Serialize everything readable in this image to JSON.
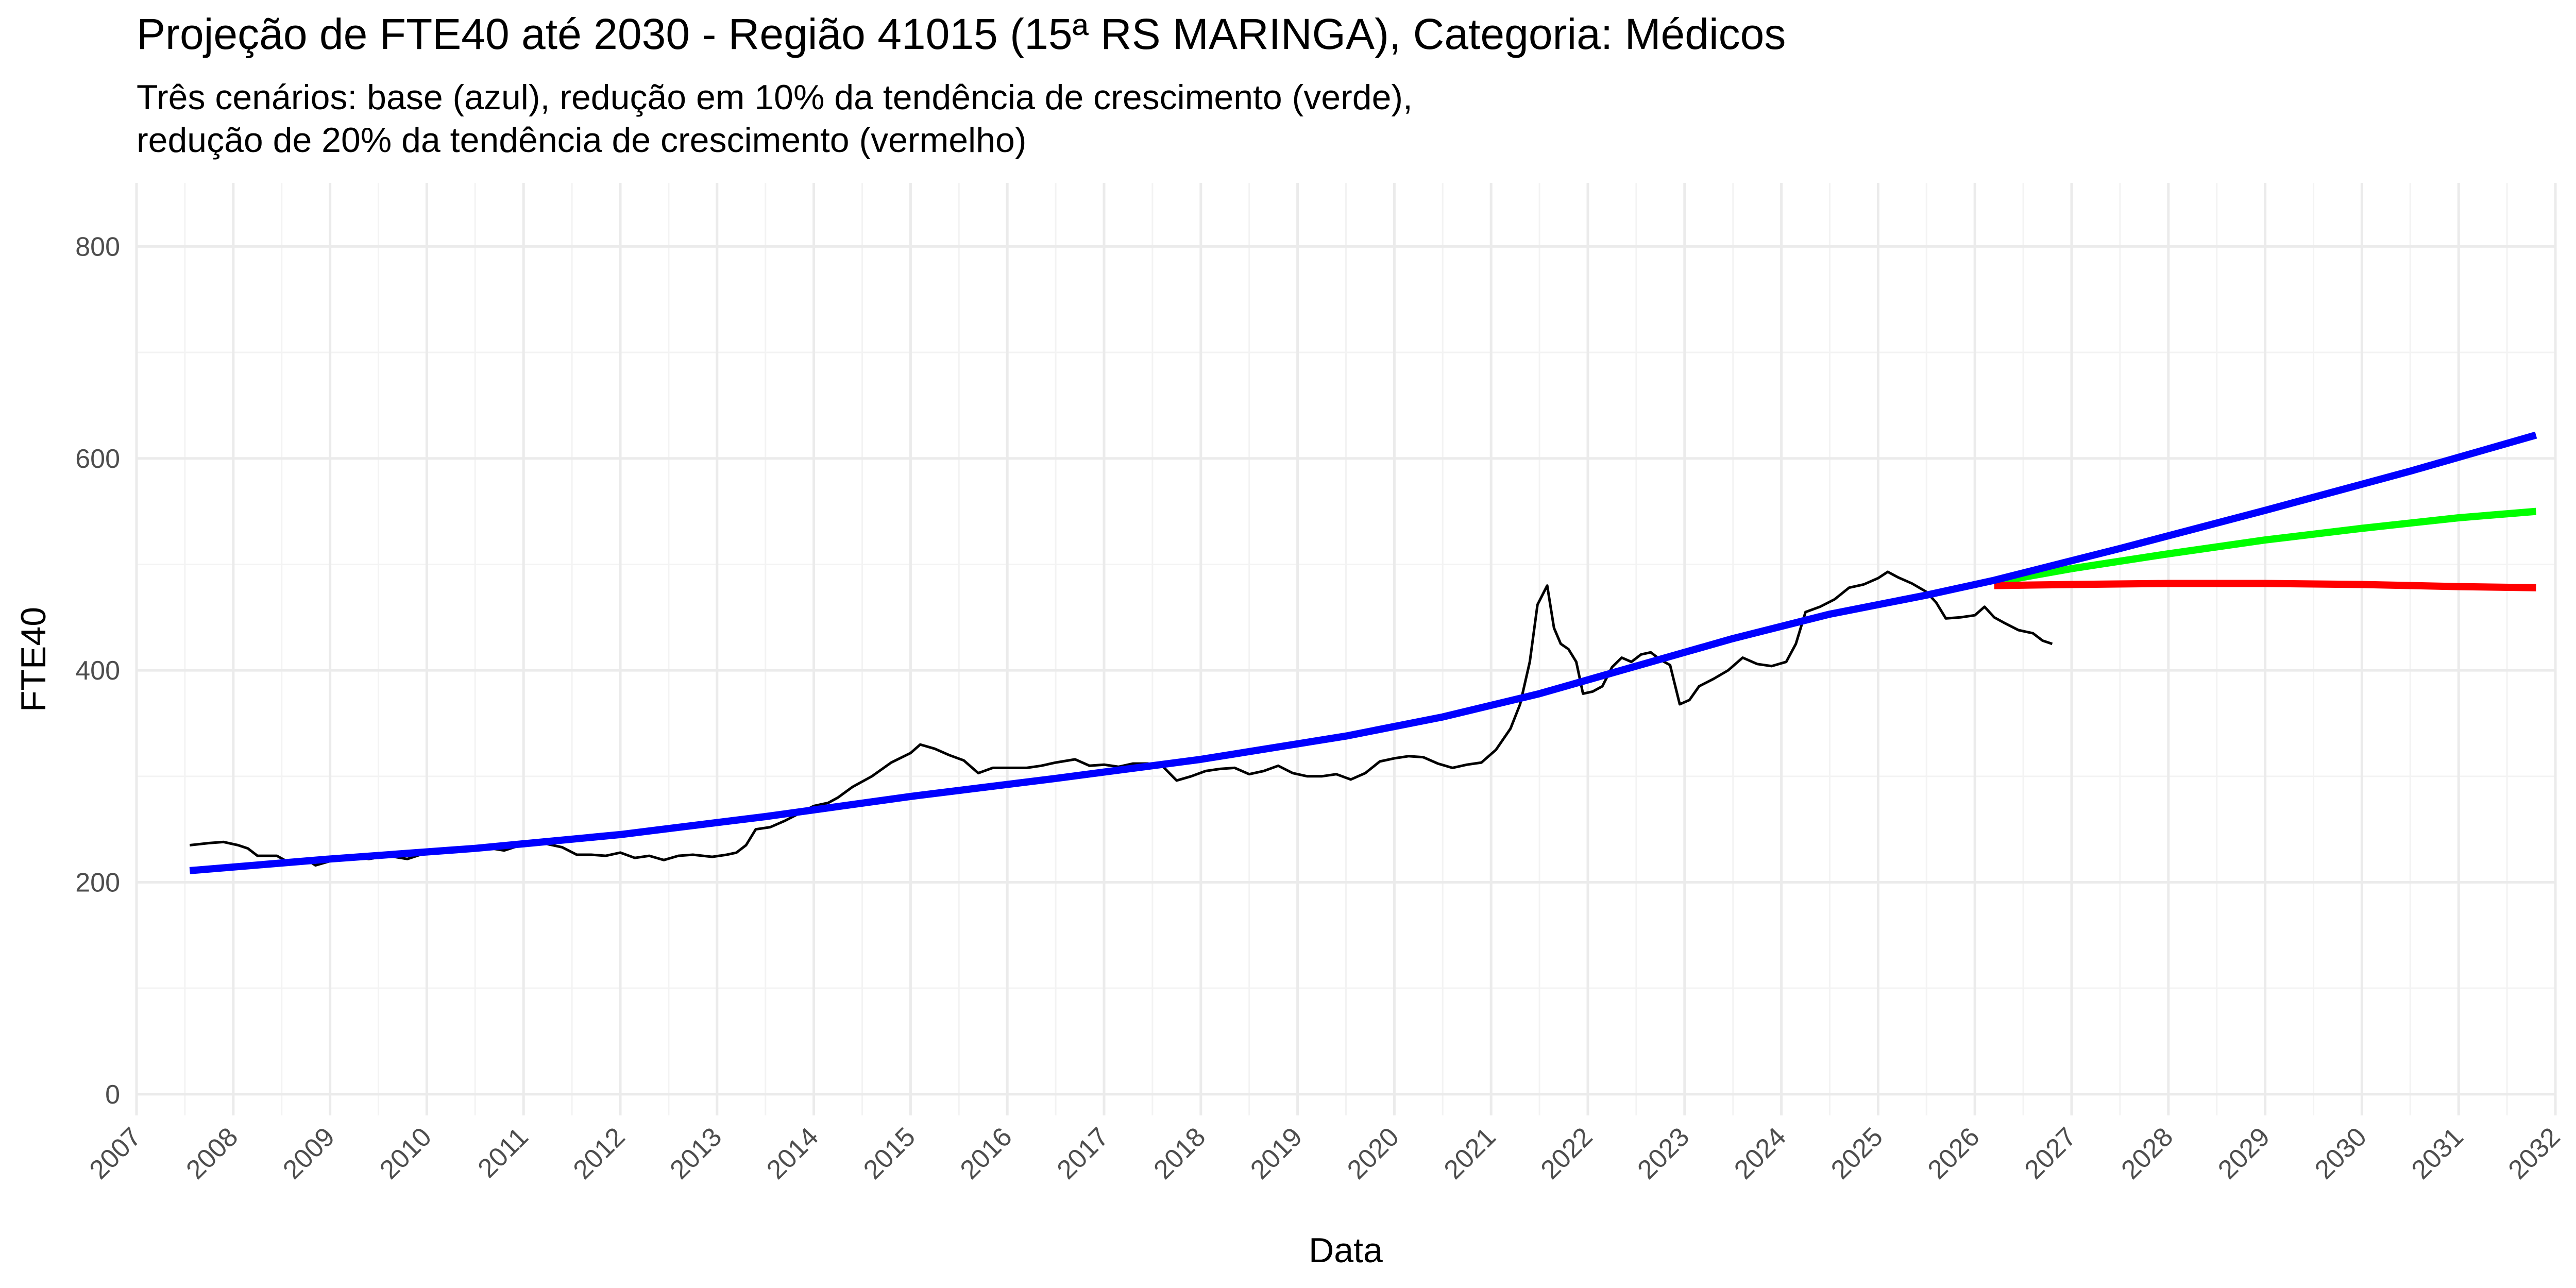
{
  "chart_data": {
    "type": "line",
    "title": "Projeção de FTE40 até 2030 - Região 41015 (15ª RS MARINGA), Categoria: Médicos",
    "subtitle_lines": [
      "Três cenários: base (azul), redução em 10% da tendência de crescimento (verde),",
      " redução de 20% da tendência de crescimento (vermelho)"
    ],
    "xlabel": "Data",
    "ylabel": "FTE40",
    "xlim": [
      2007,
      2032
    ],
    "ylim": [
      -20,
      860
    ],
    "x_ticks": [
      "2007",
      "2008",
      "2009",
      "2010",
      "2011",
      "2012",
      "2013",
      "2014",
      "2015",
      "2016",
      "2017",
      "2018",
      "2019",
      "2020",
      "2021",
      "2022",
      "2023",
      "2024",
      "2025",
      "2026",
      "2027",
      "2028",
      "2029",
      "2030",
      "2031",
      "2032"
    ],
    "y_ticks": [
      0,
      200,
      400,
      600,
      800
    ],
    "grid": true,
    "legend": "none",
    "colors": {
      "observed": "#000000",
      "base": "#0000ff",
      "green": "#00ff00",
      "red": "#ff0000"
    },
    "series": [
      {
        "key": "observed",
        "points": [
          [
            2007.55,
            235
          ],
          [
            2007.75,
            237
          ],
          [
            2007.9,
            238
          ],
          [
            2008.05,
            235
          ],
          [
            2008.15,
            232
          ],
          [
            2008.25,
            225
          ],
          [
            2008.45,
            225
          ],
          [
            2008.55,
            220
          ],
          [
            2008.75,
            222
          ],
          [
            2008.85,
            216
          ],
          [
            2009.0,
            220
          ],
          [
            2009.2,
            225
          ],
          [
            2009.4,
            222
          ],
          [
            2009.6,
            225
          ],
          [
            2009.8,
            222
          ],
          [
            2010.0,
            228
          ],
          [
            2010.2,
            230
          ],
          [
            2010.4,
            232
          ],
          [
            2010.6,
            233
          ],
          [
            2010.8,
            230
          ],
          [
            2011.0,
            236
          ],
          [
            2011.2,
            237
          ],
          [
            2011.4,
            233
          ],
          [
            2011.55,
            226
          ],
          [
            2011.7,
            226
          ],
          [
            2011.85,
            225
          ],
          [
            2012.0,
            228
          ],
          [
            2012.15,
            223
          ],
          [
            2012.3,
            225
          ],
          [
            2012.45,
            221
          ],
          [
            2012.6,
            225
          ],
          [
            2012.75,
            226
          ],
          [
            2012.95,
            224
          ],
          [
            2013.1,
            226
          ],
          [
            2013.2,
            228
          ],
          [
            2013.3,
            235
          ],
          [
            2013.4,
            250
          ],
          [
            2013.55,
            252
          ],
          [
            2013.7,
            258
          ],
          [
            2013.85,
            265
          ],
          [
            2014.0,
            272
          ],
          [
            2014.15,
            275
          ],
          [
            2014.25,
            280
          ],
          [
            2014.4,
            290
          ],
          [
            2014.6,
            300
          ],
          [
            2014.8,
            313
          ],
          [
            2015.0,
            322
          ],
          [
            2015.1,
            330
          ],
          [
            2015.25,
            326
          ],
          [
            2015.4,
            320
          ],
          [
            2015.55,
            315
          ],
          [
            2015.7,
            303
          ],
          [
            2015.85,
            308
          ],
          [
            2016.0,
            308
          ],
          [
            2016.2,
            308
          ],
          [
            2016.35,
            310
          ],
          [
            2016.5,
            313
          ],
          [
            2016.7,
            316
          ],
          [
            2016.85,
            310
          ],
          [
            2017.0,
            311
          ],
          [
            2017.15,
            309
          ],
          [
            2017.3,
            312
          ],
          [
            2017.45,
            312
          ],
          [
            2017.6,
            310
          ],
          [
            2017.75,
            296
          ],
          [
            2017.9,
            300
          ],
          [
            2018.05,
            305
          ],
          [
            2018.2,
            307
          ],
          [
            2018.35,
            308
          ],
          [
            2018.5,
            302
          ],
          [
            2018.65,
            305
          ],
          [
            2018.8,
            310
          ],
          [
            2018.95,
            303
          ],
          [
            2019.1,
            300
          ],
          [
            2019.25,
            300
          ],
          [
            2019.4,
            302
          ],
          [
            2019.55,
            297
          ],
          [
            2019.7,
            303
          ],
          [
            2019.85,
            314
          ],
          [
            2020.0,
            317
          ],
          [
            2020.15,
            319
          ],
          [
            2020.3,
            318
          ],
          [
            2020.45,
            312
          ],
          [
            2020.6,
            308
          ],
          [
            2020.75,
            311
          ],
          [
            2020.9,
            313
          ],
          [
            2021.05,
            325
          ],
          [
            2021.2,
            345
          ],
          [
            2021.3,
            368
          ],
          [
            2021.4,
            408
          ],
          [
            2021.48,
            462
          ],
          [
            2021.58,
            480
          ],
          [
            2021.65,
            440
          ],
          [
            2021.72,
            425
          ],
          [
            2021.8,
            420
          ],
          [
            2021.88,
            408
          ],
          [
            2021.95,
            378
          ],
          [
            2022.05,
            380
          ],
          [
            2022.15,
            385
          ],
          [
            2022.25,
            403
          ],
          [
            2022.35,
            412
          ],
          [
            2022.45,
            408
          ],
          [
            2022.55,
            415
          ],
          [
            2022.65,
            417
          ],
          [
            2022.75,
            410
          ],
          [
            2022.85,
            405
          ],
          [
            2022.95,
            368
          ],
          [
            2023.05,
            372
          ],
          [
            2023.15,
            385
          ],
          [
            2023.3,
            392
          ],
          [
            2023.45,
            400
          ],
          [
            2023.6,
            412
          ],
          [
            2023.75,
            406
          ],
          [
            2023.9,
            404
          ],
          [
            2024.05,
            408
          ],
          [
            2024.15,
            425
          ],
          [
            2024.25,
            455
          ],
          [
            2024.4,
            460
          ],
          [
            2024.55,
            467
          ],
          [
            2024.7,
            478
          ],
          [
            2024.85,
            481
          ],
          [
            2025.0,
            487
          ],
          [
            2025.1,
            493
          ],
          [
            2025.2,
            488
          ],
          [
            2025.35,
            482
          ],
          [
            2025.5,
            474
          ],
          [
            2025.6,
            464
          ],
          [
            2025.7,
            449
          ],
          [
            2025.85,
            450
          ],
          [
            2026.0,
            452
          ],
          [
            2026.1,
            460
          ],
          [
            2026.2,
            450
          ],
          [
            2026.3,
            445
          ],
          [
            2026.45,
            438
          ],
          [
            2026.6,
            435
          ],
          [
            2026.7,
            428
          ],
          [
            2026.8,
            425
          ]
        ]
      },
      {
        "key": "base",
        "points": [
          [
            2007.55,
            211
          ],
          [
            2009.0,
            222
          ],
          [
            2010.5,
            232
          ],
          [
            2012.0,
            245
          ],
          [
            2013.5,
            262
          ],
          [
            2015.0,
            281
          ],
          [
            2016.5,
            298
          ],
          [
            2018.0,
            316
          ],
          [
            2019.5,
            338
          ],
          [
            2020.5,
            356
          ],
          [
            2021.5,
            378
          ],
          [
            2022.5,
            404
          ],
          [
            2023.5,
            430
          ],
          [
            2024.5,
            453
          ],
          [
            2025.5,
            471
          ],
          [
            2026.2,
            485
          ],
          [
            2027.5,
            515
          ],
          [
            2029.0,
            551
          ],
          [
            2030.5,
            588
          ],
          [
            2031.8,
            622
          ]
        ]
      },
      {
        "key": "green",
        "points": [
          [
            2026.2,
            483
          ],
          [
            2027.0,
            496
          ],
          [
            2028.0,
            510
          ],
          [
            2029.0,
            523
          ],
          [
            2030.0,
            534
          ],
          [
            2031.0,
            544
          ],
          [
            2031.8,
            550
          ]
        ]
      },
      {
        "key": "red",
        "points": [
          [
            2026.2,
            480
          ],
          [
            2027.0,
            481
          ],
          [
            2028.0,
            482
          ],
          [
            2029.0,
            482
          ],
          [
            2030.0,
            481
          ],
          [
            2031.0,
            479
          ],
          [
            2031.8,
            478
          ]
        ]
      }
    ]
  }
}
